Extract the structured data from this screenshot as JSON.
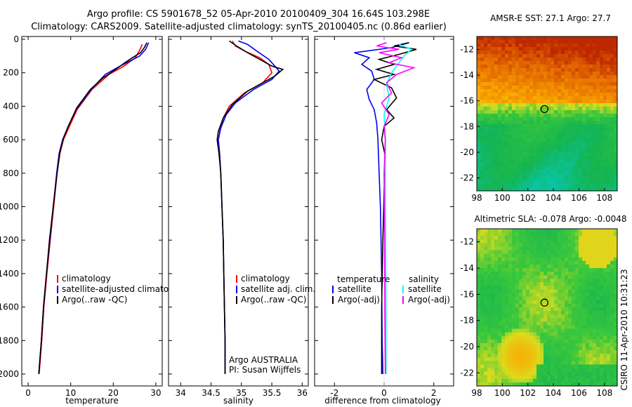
{
  "header": {
    "line1": "Argo profile: CS 5901678_52 05-Apr-2010 20100409_304 16.64S 103.298E",
    "line2": "Climatology: CARS2009. Satellite-adjusted climatology: synTS_20100405.nc (0.86d earlier)"
  },
  "colors": {
    "red": "#ff0000",
    "blue": "#0000ee",
    "black": "#000000",
    "cyan": "#00ffff",
    "magenta": "#ff00ff"
  },
  "side_label": "CSIRO 11-Apr-2010 10:31:23",
  "chart_data": [
    {
      "type": "line",
      "id": "temperature",
      "xlabel": "temperature",
      "ylabel": "",
      "xlim": [
        -1.5,
        31.5
      ],
      "ylim": [
        2070,
        0
      ],
      "xticks": [
        0,
        10,
        20,
        30
      ],
      "yticks": [
        0,
        200,
        400,
        600,
        800,
        1000,
        1200,
        1400,
        1600,
        1800,
        2000
      ],
      "legend": [
        {
          "label": "climatology",
          "color": "red"
        },
        {
          "label": "satellite-adjusted climatology",
          "color": "blue"
        },
        {
          "label": "Argo(..raw -QC)",
          "color": "black"
        }
      ],
      "series": [
        {
          "name": "climatology",
          "color": "red",
          "points": [
            [
              26.8,
              30
            ],
            [
              26.3,
              60
            ],
            [
              25.2,
              110
            ],
            [
              22.5,
              160
            ],
            [
              19.0,
              210
            ],
            [
              15.0,
              300
            ],
            [
              11.5,
              420
            ],
            [
              9.7,
              520
            ],
            [
              8.3,
              600
            ],
            [
              7.5,
              680
            ],
            [
              6.8,
              800
            ],
            [
              6.0,
              1000
            ],
            [
              5.2,
              1200
            ],
            [
              4.4,
              1400
            ],
            [
              3.7,
              1600
            ],
            [
              3.2,
              1800
            ],
            [
              2.6,
              2000
            ]
          ]
        },
        {
          "name": "satellite-adjusted climatology",
          "color": "blue",
          "points": [
            [
              28.3,
              20
            ],
            [
              27.6,
              60
            ],
            [
              26.2,
              100
            ],
            [
              21.6,
              160
            ],
            [
              18.1,
              210
            ],
            [
              14.8,
              300
            ],
            [
              11.3,
              420
            ],
            [
              9.4,
              520
            ],
            [
              8.1,
              600
            ],
            [
              7.3,
              680
            ],
            [
              6.7,
              800
            ],
            [
              5.9,
              1000
            ],
            [
              5.1,
              1200
            ],
            [
              4.3,
              1400
            ],
            [
              3.6,
              1600
            ],
            [
              3.1,
              1800
            ],
            [
              2.5,
              2000
            ]
          ]
        },
        {
          "name": "Argo(..raw -QC)",
          "color": "black",
          "points": [
            [
              27.9,
              20
            ],
            [
              27.3,
              50
            ],
            [
              26.4,
              80
            ],
            [
              24.5,
              110
            ],
            [
              22.7,
              140
            ],
            [
              20.6,
              180
            ],
            [
              17.6,
              230
            ],
            [
              14.6,
              300
            ],
            [
              11.4,
              410
            ],
            [
              9.6,
              510
            ],
            [
              8.3,
              590
            ],
            [
              7.4,
              680
            ],
            [
              6.8,
              800
            ],
            [
              5.9,
              1000
            ],
            [
              5.0,
              1200
            ],
            [
              4.3,
              1400
            ],
            [
              3.6,
              1600
            ],
            [
              3.1,
              1800
            ],
            [
              2.5,
              2000
            ]
          ]
        }
      ]
    },
    {
      "type": "line",
      "id": "salinity",
      "xlabel": "salinity",
      "xlim": [
        33.8,
        36.1
      ],
      "ylim": [
        2070,
        0
      ],
      "xticks": [
        34,
        34.5,
        35,
        35.5,
        36
      ],
      "legend": [
        {
          "label": "climatology",
          "color": "red"
        },
        {
          "label": "satellite adj. clim.",
          "color": "blue"
        },
        {
          "label": "Argo(..raw -QC)",
          "color": "black"
        }
      ],
      "annotation": [
        "Argo AUSTRALIA",
        "PI: Susan Wijffels"
      ],
      "series": [
        {
          "name": "climatology",
          "color": "red",
          "points": [
            [
              34.85,
              10
            ],
            [
              34.9,
              40
            ],
            [
              35.05,
              70
            ],
            [
              35.3,
              110
            ],
            [
              35.45,
              150
            ],
            [
              35.5,
              200
            ],
            [
              35.35,
              260
            ],
            [
              35.05,
              320
            ],
            [
              34.8,
              400
            ],
            [
              34.7,
              470
            ],
            [
              34.65,
              540
            ],
            [
              34.62,
              600
            ],
            [
              34.64,
              680
            ],
            [
              34.66,
              800
            ],
            [
              34.68,
              1000
            ],
            [
              34.7,
              1200
            ],
            [
              34.71,
              1400
            ],
            [
              34.72,
              1600
            ],
            [
              34.73,
              1800
            ],
            [
              34.73,
              2000
            ]
          ]
        },
        {
          "name": "satellite adj. clim.",
          "color": "blue",
          "points": [
            [
              34.95,
              10
            ],
            [
              35.1,
              30
            ],
            [
              35.25,
              70
            ],
            [
              35.45,
              120
            ],
            [
              35.55,
              160
            ],
            [
              35.62,
              190
            ],
            [
              35.5,
              240
            ],
            [
              35.2,
              300
            ],
            [
              34.9,
              380
            ],
            [
              34.75,
              450
            ],
            [
              34.66,
              530
            ],
            [
              34.62,
              600
            ],
            [
              34.64,
              680
            ],
            [
              34.66,
              800
            ],
            [
              34.68,
              1000
            ],
            [
              34.7,
              1200
            ],
            [
              34.71,
              1400
            ],
            [
              34.72,
              1600
            ],
            [
              34.73,
              1800
            ],
            [
              34.73,
              2000
            ]
          ]
        },
        {
          "name": "Argo(..raw -QC)",
          "color": "black",
          "points": [
            [
              34.8,
              10
            ],
            [
              34.92,
              40
            ],
            [
              35.1,
              80
            ],
            [
              35.3,
              120
            ],
            [
              35.5,
              160
            ],
            [
              35.68,
              180
            ],
            [
              35.55,
              220
            ],
            [
              35.35,
              260
            ],
            [
              35.1,
              310
            ],
            [
              34.85,
              390
            ],
            [
              34.7,
              470
            ],
            [
              34.62,
              550
            ],
            [
              34.6,
              600
            ],
            [
              34.63,
              680
            ],
            [
              34.66,
              800
            ],
            [
              34.68,
              1000
            ],
            [
              34.7,
              1200
            ],
            [
              34.71,
              1400
            ],
            [
              34.72,
              1600
            ],
            [
              34.73,
              1800
            ],
            [
              34.73,
              2000
            ]
          ]
        }
      ]
    },
    {
      "type": "line",
      "id": "difference",
      "xlabel": "difference from climatology",
      "xlim": [
        -2.8,
        2.8
      ],
      "ylim": [
        2070,
        0
      ],
      "xticks": [
        -2,
        0,
        2
      ],
      "legend_left_title": "temperature",
      "legend_right_title": "salinity",
      "legend": [
        {
          "label": "satellite",
          "color": "blue",
          "side": "left"
        },
        {
          "label": "Argo(-adj)",
          "color": "black",
          "side": "left"
        },
        {
          "label": "satellite",
          "color": "cyan",
          "side": "right"
        },
        {
          "label": "Argo(-adj)",
          "color": "magenta",
          "side": "right"
        }
      ],
      "series": [
        {
          "name": "temperature satellite",
          "color": "blue",
          "points": [
            [
              1.0,
              20
            ],
            [
              0.3,
              50
            ],
            [
              -1.2,
              80
            ],
            [
              -0.6,
              110
            ],
            [
              -0.9,
              150
            ],
            [
              -0.5,
              190
            ],
            [
              -0.4,
              240
            ],
            [
              -0.7,
              300
            ],
            [
              -0.6,
              360
            ],
            [
              -0.4,
              420
            ],
            [
              -0.3,
              500
            ],
            [
              -0.25,
              600
            ],
            [
              -0.2,
              800
            ],
            [
              -0.15,
              1000
            ],
            [
              -0.1,
              1400
            ],
            [
              -0.08,
              1800
            ],
            [
              -0.05,
              2000
            ]
          ]
        },
        {
          "name": "temperature Argo(-adj)",
          "color": "black",
          "points": [
            [
              1.0,
              20
            ],
            [
              0.4,
              40
            ],
            [
              1.3,
              60
            ],
            [
              0.6,
              90
            ],
            [
              -0.2,
              120
            ],
            [
              0.4,
              150
            ],
            [
              -0.3,
              180
            ],
            [
              0.4,
              210
            ],
            [
              -0.4,
              240
            ],
            [
              0.3,
              290
            ],
            [
              0.5,
              350
            ],
            [
              0.1,
              420
            ],
            [
              0.4,
              470
            ],
            [
              0.0,
              520
            ],
            [
              -0.1,
              600
            ],
            [
              0.05,
              700
            ],
            [
              0.0,
              900
            ],
            [
              -0.05,
              1200
            ],
            [
              -0.1,
              1600
            ],
            [
              -0.1,
              2000
            ]
          ]
        },
        {
          "name": "salinity satellite",
          "color": "cyan",
          "points": [
            [
              0.6,
              30
            ],
            [
              1.1,
              60
            ],
            [
              0.8,
              100
            ],
            [
              0.6,
              140
            ],
            [
              0.3,
              200
            ],
            [
              0.1,
              270
            ],
            [
              0.2,
              350
            ],
            [
              0.0,
              450
            ],
            [
              0.05,
              600
            ],
            [
              0.05,
              800
            ],
            [
              0.06,
              1200
            ],
            [
              0.07,
              1600
            ],
            [
              0.08,
              2000
            ]
          ]
        },
        {
          "name": "salinity Argo(-adj)",
          "color": "magenta",
          "points": [
            [
              0.1,
              20
            ],
            [
              -0.3,
              40
            ],
            [
              0.6,
              60
            ],
            [
              -0.2,
              80
            ],
            [
              0.7,
              110
            ],
            [
              0.2,
              140
            ],
            [
              1.2,
              170
            ],
            [
              0.5,
              210
            ],
            [
              0.1,
              260
            ],
            [
              0.3,
              320
            ],
            [
              -0.1,
              380
            ],
            [
              0.2,
              450
            ],
            [
              0.0,
              520
            ],
            [
              0.05,
              600
            ],
            [
              0.0,
              800
            ],
            [
              0.02,
              1200
            ],
            [
              0.03,
              1600
            ],
            [
              0.05,
              2000
            ]
          ]
        }
      ]
    },
    {
      "type": "heatmap",
      "id": "sst-map",
      "title": "AMSR-E SST: 27.1 Argo: 27.7",
      "xlim": [
        98,
        109
      ],
      "ylim": [
        -23,
        -11
      ],
      "xticks": [
        98,
        100,
        102,
        104,
        106,
        108
      ],
      "yticks": [
        -12,
        -14,
        -16,
        -18,
        -20,
        -22
      ],
      "marker": {
        "lon": 103.298,
        "lat": -16.64
      }
    },
    {
      "type": "heatmap",
      "id": "sla-map",
      "title": "Altimetric SLA: -0.078 Argo: -0.0048",
      "xlim": [
        98,
        109
      ],
      "ylim": [
        -23,
        -11
      ],
      "xticks": [
        98,
        100,
        102,
        104,
        106,
        108
      ],
      "yticks": [
        -12,
        -14,
        -16,
        -18,
        -20,
        -22
      ],
      "marker": {
        "lon": 103.298,
        "lat": -16.64
      }
    }
  ]
}
